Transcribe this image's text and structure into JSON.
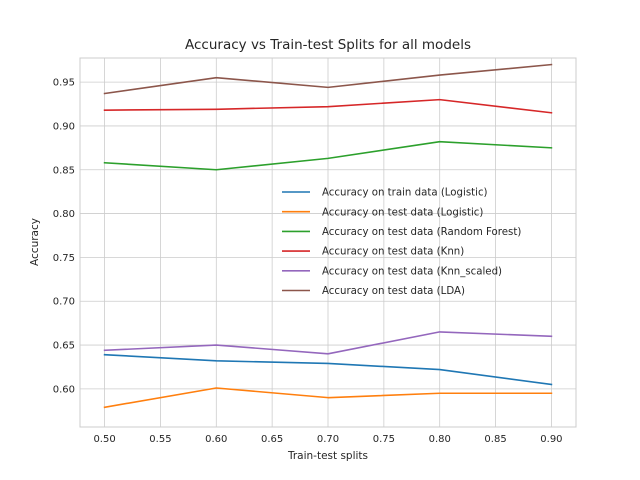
{
  "chart_data": {
    "type": "line",
    "title": "Accuracy vs Train-test Splits for all models",
    "xlabel": "Train-test splits",
    "ylabel": "Accuracy",
    "x": [
      0.5,
      0.6,
      0.7,
      0.8,
      0.9
    ],
    "xlim": [
      0.478,
      0.922
    ],
    "ylim": [
      0.5565,
      0.9775
    ],
    "xticks": [
      0.5,
      0.55,
      0.6,
      0.65,
      0.7,
      0.75,
      0.8,
      0.85,
      0.9
    ],
    "xtick_labels": [
      "0.50",
      "0.55",
      "0.60",
      "0.65",
      "0.70",
      "0.75",
      "0.80",
      "0.85",
      "0.90"
    ],
    "yticks": [
      0.6,
      0.65,
      0.7,
      0.75,
      0.8,
      0.85,
      0.9,
      0.95
    ],
    "ytick_labels": [
      "0.60",
      "0.65",
      "0.70",
      "0.75",
      "0.80",
      "0.85",
      "0.90",
      "0.95"
    ],
    "grid": true,
    "legend_position": "center-right",
    "series": [
      {
        "name": "Accuracy on train data (Logistic)",
        "color": "#1f77b4",
        "values": [
          0.639,
          0.632,
          0.629,
          0.622,
          0.605
        ]
      },
      {
        "name": "Accuracy on test data (Logistic)",
        "color": "#ff7f0e",
        "values": [
          0.579,
          0.601,
          0.59,
          0.595,
          0.595
        ]
      },
      {
        "name": "Accuracy on test data (Random Forest)",
        "color": "#2ca02c",
        "values": [
          0.858,
          0.85,
          0.863,
          0.882,
          0.875
        ]
      },
      {
        "name": "Accuracy on test data (Knn)",
        "color": "#d62728",
        "values": [
          0.918,
          0.919,
          0.922,
          0.93,
          0.915
        ]
      },
      {
        "name": "Accuracy on test data (Knn_scaled)",
        "color": "#9467bd",
        "values": [
          0.644,
          0.65,
          0.64,
          0.665,
          0.66
        ]
      },
      {
        "name": "Accuracy on test data (LDA)",
        "color": "#8c564b",
        "values": [
          0.937,
          0.955,
          0.944,
          0.958,
          0.97
        ]
      }
    ]
  }
}
